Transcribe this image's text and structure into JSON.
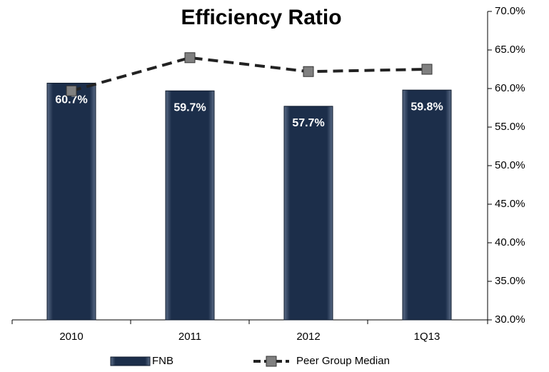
{
  "chart_data": {
    "type": "bar",
    "title": "Efficiency Ratio",
    "categories": [
      "2010",
      "2011",
      "2012",
      "1Q13"
    ],
    "series": [
      {
        "name": "FNB",
        "type": "bar",
        "color": "#1c2e4a",
        "values": [
          60.7,
          59.7,
          57.7,
          59.8
        ],
        "value_labels": [
          "60.7%",
          "59.7%",
          "57.7%",
          "59.8%"
        ]
      },
      {
        "name": "Peer Group Median",
        "type": "line",
        "color": "#222222",
        "marker_color": "#808080",
        "values": [
          59.7,
          64.0,
          62.2,
          62.5
        ]
      }
    ],
    "ylim": [
      30,
      70
    ],
    "yticks": [
      {
        "value": 30,
        "label": "30.0%"
      },
      {
        "value": 35,
        "label": "35.0%"
      },
      {
        "value": 40,
        "label": "40.0%"
      },
      {
        "value": 45,
        "label": "45.0%"
      },
      {
        "value": 50,
        "label": "50.0%"
      },
      {
        "value": 55,
        "label": "55.0%"
      },
      {
        "value": 60,
        "label": "60.0%"
      },
      {
        "value": 65,
        "label": "65.0%"
      },
      {
        "value": 70,
        "label": "70.0%"
      }
    ],
    "grid": false,
    "legend": "bottom"
  }
}
